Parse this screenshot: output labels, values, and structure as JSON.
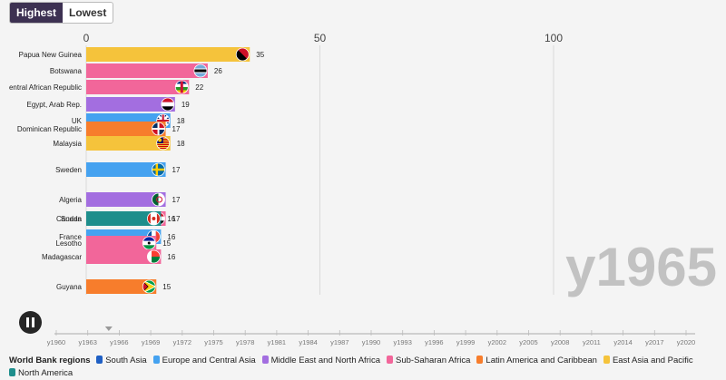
{
  "controls": {
    "highest_label": "Highest",
    "lowest_label": "Lowest",
    "active": "highest"
  },
  "chart_data": {
    "type": "bar",
    "orientation": "horizontal",
    "current_period": "y1965",
    "xlim": [
      0,
      130
    ],
    "x_ticks": [
      0,
      50,
      100
    ],
    "grid": true,
    "regions": [
      {
        "name": "South Asia",
        "color": "#1f5fc4"
      },
      {
        "name": "Europe and Central Asia",
        "color": "#45a2f0"
      },
      {
        "name": "Middle East and North Africa",
        "color": "#a36ee0"
      },
      {
        "name": "Sub-Saharan Africa",
        "color": "#f2669a"
      },
      {
        "name": "Latin America and Caribbean",
        "color": "#f77d2c"
      },
      {
        "name": "East Asia and Pacific",
        "color": "#f5c33b"
      },
      {
        "name": "North America",
        "color": "#1e8e8c"
      }
    ],
    "bars": [
      {
        "label": "Papua New Guinea",
        "value": 35,
        "value_label": "35",
        "region": "East Asia and Pacific",
        "flag": "papua-new-guinea-flag-icon"
      },
      {
        "label": "Botswana",
        "value": 26,
        "value_label": "26",
        "region": "Sub-Saharan Africa",
        "flag": "botswana-flag-icon"
      },
      {
        "label": "entral African Republic",
        "value": 22,
        "value_label": "22",
        "region": "Sub-Saharan Africa",
        "flag": "central-african-republic-flag-icon"
      },
      {
        "label": "Egypt, Arab Rep.",
        "value": 19,
        "value_label": "19",
        "region": "Middle East and North Africa",
        "flag": "egypt-flag-icon"
      },
      {
        "label": "UK",
        "value": 18,
        "value_label": "18",
        "region": "Europe and Central Asia",
        "flag": "uk-flag-icon"
      },
      {
        "label": "Dominican Republic",
        "value": 17,
        "value_label": "17",
        "region": "Latin America and Caribbean",
        "flag": "dominican-republic-flag-icon"
      },
      {
        "label": "Malaysia",
        "value": 18,
        "value_label": "18",
        "region": "East Asia and Pacific",
        "flag": "malaysia-flag-icon"
      },
      {
        "label": "Sweden",
        "value": 17,
        "value_label": "17",
        "region": "Europe and Central Asia",
        "flag": "sweden-flag-icon"
      },
      {
        "label": "Algeria",
        "value": 17,
        "value_label": "17",
        "region": "Middle East and North Africa",
        "flag": "algeria-flag-icon"
      },
      {
        "label": "Sudan",
        "value": 17,
        "value_label": "17",
        "region": "Sub-Saharan Africa",
        "flag": "sudan-flag-icon"
      },
      {
        "label": "Canada",
        "value": 16,
        "value_label": "16",
        "region": "North America",
        "flag": "canada-flag-icon"
      },
      {
        "label": "France",
        "value": 16,
        "value_label": "16",
        "region": "Europe and Central Asia",
        "flag": "france-flag-icon"
      },
      {
        "label": "Lesotho",
        "value": 15,
        "value_label": "15",
        "region": "Sub-Saharan Africa",
        "flag": "lesotho-flag-icon"
      },
      {
        "label": "Madagascar",
        "value": 16,
        "value_label": "16",
        "region": "Sub-Saharan Africa",
        "flag": "madagascar-flag-icon"
      },
      {
        "label": "Guyana",
        "value": 15,
        "value_label": "15",
        "region": "Latin America and Caribbean",
        "flag": "guyana-flag-icon"
      }
    ],
    "timeline": {
      "labels": [
        "y1960",
        "y1963",
        "y1966",
        "y1969",
        "y1972",
        "y1975",
        "y1978",
        "y1981",
        "y1984",
        "y1987",
        "y1990",
        "y1993",
        "y1996",
        "y1999",
        "y2002",
        "y2005",
        "y2008",
        "y2011",
        "y2014",
        "y2017",
        "y2020"
      ],
      "current": "y1965"
    }
  },
  "legend": {
    "title": "World Bank regions"
  }
}
